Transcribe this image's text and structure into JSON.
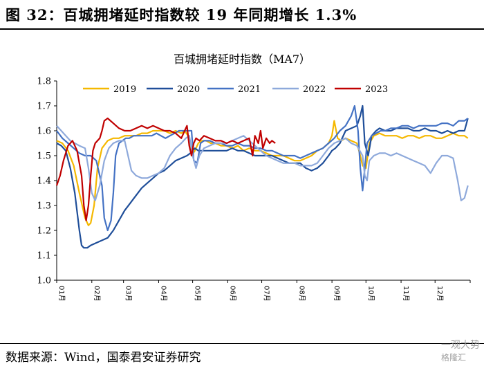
{
  "figure": {
    "title": "图 32：百城拥堵延时指数较 19 年同期增长 1.3%",
    "source": "数据来源：Wind，国泰君安证券研究",
    "watermark_line1": "一观大势",
    "watermark_line2": "格隆汇"
  },
  "chart_data": {
    "type": "line",
    "title": "百城拥堵延时指数（MA7）",
    "xlabel": "",
    "ylabel": "",
    "ylim": [
      1.0,
      1.8
    ],
    "yticks": [
      "1.8",
      "1.7",
      "1.6",
      "1.5",
      "1.4",
      "1.3",
      "1.2",
      "1.1",
      "1.0"
    ],
    "xlim": [
      0,
      365
    ],
    "xticks": [
      {
        "day": 0,
        "label": "01月"
      },
      {
        "day": 31,
        "label": "02月"
      },
      {
        "day": 59,
        "label": "03月"
      },
      {
        "day": 90,
        "label": "04月"
      },
      {
        "day": 120,
        "label": "05月"
      },
      {
        "day": 151,
        "label": "06月"
      },
      {
        "day": 181,
        "label": "07月"
      },
      {
        "day": 212,
        "label": "08月"
      },
      {
        "day": 243,
        "label": "09月"
      },
      {
        "day": 273,
        "label": "10月"
      },
      {
        "day": 304,
        "label": "11月"
      },
      {
        "day": 334,
        "label": "12月"
      },
      {
        "day": 365,
        "label": ""
      }
    ],
    "legend_position": "top",
    "grid": false,
    "series": [
      {
        "name": "2019",
        "color": "#F5B800",
        "x": [
          0,
          5,
          10,
          15,
          20,
          25,
          28,
          30,
          33,
          36,
          40,
          45,
          50,
          55,
          60,
          65,
          70,
          75,
          80,
          85,
          90,
          95,
          100,
          105,
          110,
          113,
          116,
          119,
          122,
          125,
          128,
          132,
          136,
          140,
          145,
          150,
          155,
          160,
          165,
          170,
          175,
          180,
          185,
          190,
          195,
          200,
          205,
          210,
          215,
          220,
          225,
          230,
          235,
          240,
          243,
          245,
          248,
          251,
          255,
          260,
          265,
          268,
          270,
          273,
          276,
          280,
          285,
          290,
          295,
          300,
          305,
          310,
          315,
          320,
          325,
          330,
          335,
          340,
          345,
          350,
          355,
          360,
          363
        ],
        "y": [
          1.56,
          1.55,
          1.52,
          1.46,
          1.35,
          1.25,
          1.22,
          1.23,
          1.3,
          1.45,
          1.53,
          1.56,
          1.57,
          1.57,
          1.58,
          1.58,
          1.58,
          1.59,
          1.59,
          1.6,
          1.6,
          1.6,
          1.59,
          1.6,
          1.59,
          1.6,
          1.58,
          1.5,
          1.52,
          1.55,
          1.56,
          1.56,
          1.55,
          1.55,
          1.54,
          1.54,
          1.53,
          1.54,
          1.52,
          1.53,
          1.52,
          1.52,
          1.51,
          1.5,
          1.5,
          1.5,
          1.49,
          1.48,
          1.48,
          1.49,
          1.5,
          1.52,
          1.53,
          1.55,
          1.58,
          1.64,
          1.57,
          1.56,
          1.57,
          1.56,
          1.55,
          1.5,
          1.46,
          1.45,
          1.55,
          1.58,
          1.59,
          1.58,
          1.58,
          1.58,
          1.57,
          1.58,
          1.58,
          1.57,
          1.58,
          1.58,
          1.57,
          1.57,
          1.58,
          1.59,
          1.58,
          1.58,
          1.57
        ]
      },
      {
        "name": "2020",
        "color": "#1F4E99",
        "x": [
          0,
          4,
          8,
          12,
          16,
          20,
          22,
          24,
          27,
          30,
          35,
          40,
          45,
          50,
          55,
          60,
          65,
          70,
          75,
          80,
          85,
          90,
          95,
          100,
          105,
          110,
          115,
          118,
          120,
          122,
          125,
          130,
          135,
          140,
          145,
          150,
          155,
          160,
          165,
          170,
          175,
          180,
          185,
          190,
          195,
          200,
          205,
          210,
          215,
          220,
          225,
          230,
          235,
          240,
          243,
          246,
          250,
          255,
          260,
          265,
          268,
          270,
          272,
          275,
          278,
          282,
          285,
          290,
          295,
          300,
          305,
          310,
          315,
          320,
          325,
          330,
          335,
          340,
          345,
          350,
          355,
          360,
          363
        ],
        "y": [
          1.55,
          1.54,
          1.52,
          1.45,
          1.35,
          1.2,
          1.14,
          1.13,
          1.13,
          1.14,
          1.15,
          1.16,
          1.17,
          1.2,
          1.24,
          1.28,
          1.31,
          1.34,
          1.37,
          1.39,
          1.41,
          1.43,
          1.44,
          1.46,
          1.48,
          1.49,
          1.5,
          1.51,
          1.52,
          1.53,
          1.52,
          1.52,
          1.52,
          1.52,
          1.52,
          1.52,
          1.53,
          1.52,
          1.52,
          1.51,
          1.5,
          1.5,
          1.5,
          1.5,
          1.49,
          1.48,
          1.47,
          1.47,
          1.47,
          1.45,
          1.44,
          1.45,
          1.47,
          1.5,
          1.52,
          1.53,
          1.55,
          1.6,
          1.61,
          1.62,
          1.66,
          1.7,
          1.55,
          1.5,
          1.58,
          1.6,
          1.61,
          1.6,
          1.6,
          1.61,
          1.61,
          1.61,
          1.6,
          1.6,
          1.61,
          1.6,
          1.6,
          1.59,
          1.6,
          1.59,
          1.6,
          1.6,
          1.65
        ]
      },
      {
        "name": "2021",
        "color": "#4472C4",
        "x": [
          0,
          5,
          10,
          15,
          20,
          25,
          30,
          35,
          40,
          42,
          45,
          48,
          50,
          52,
          55,
          58,
          61,
          64,
          68,
          72,
          76,
          80,
          84,
          88,
          92,
          96,
          100,
          104,
          108,
          112,
          116,
          119,
          121,
          124,
          127,
          130,
          135,
          140,
          145,
          150,
          155,
          160,
          165,
          170,
          175,
          180,
          185,
          190,
          195,
          200,
          205,
          210,
          215,
          220,
          225,
          230,
          235,
          240,
          245,
          250,
          255,
          260,
          263,
          266,
          268,
          270,
          272,
          274,
          278,
          282,
          286,
          290,
          295,
          300,
          305,
          310,
          315,
          320,
          325,
          330,
          335,
          340,
          345,
          350,
          355,
          360,
          363
        ],
        "y": [
          1.6,
          1.57,
          1.55,
          1.53,
          1.51,
          1.5,
          1.5,
          1.48,
          1.38,
          1.25,
          1.2,
          1.24,
          1.35,
          1.5,
          1.55,
          1.56,
          1.57,
          1.57,
          1.58,
          1.58,
          1.58,
          1.58,
          1.58,
          1.59,
          1.58,
          1.57,
          1.58,
          1.59,
          1.6,
          1.6,
          1.6,
          1.6,
          1.48,
          1.47,
          1.55,
          1.56,
          1.56,
          1.55,
          1.55,
          1.54,
          1.54,
          1.55,
          1.54,
          1.54,
          1.53,
          1.53,
          1.52,
          1.52,
          1.51,
          1.5,
          1.5,
          1.5,
          1.49,
          1.5,
          1.51,
          1.52,
          1.53,
          1.55,
          1.57,
          1.6,
          1.62,
          1.66,
          1.7,
          1.6,
          1.45,
          1.36,
          1.45,
          1.55,
          1.58,
          1.59,
          1.6,
          1.6,
          1.61,
          1.61,
          1.62,
          1.62,
          1.61,
          1.62,
          1.62,
          1.62,
          1.62,
          1.63,
          1.63,
          1.62,
          1.64,
          1.64,
          1.65
        ]
      },
      {
        "name": "2022",
        "color": "#8EA9DB",
        "x": [
          0,
          4,
          8,
          12,
          16,
          20,
          25,
          28,
          31,
          34,
          38,
          42,
          46,
          50,
          55,
          60,
          63,
          66,
          70,
          75,
          80,
          85,
          90,
          95,
          100,
          105,
          110,
          114,
          117,
          120,
          123,
          126,
          130,
          135,
          140,
          145,
          150,
          155,
          160,
          165,
          170,
          175,
          180,
          185,
          190,
          195,
          200,
          205,
          210,
          215,
          220,
          225,
          230,
          235,
          240,
          245,
          250,
          255,
          260,
          265,
          270,
          272,
          274,
          276,
          280,
          285,
          290,
          295,
          300,
          305,
          310,
          315,
          320,
          325,
          330,
          335,
          340,
          345,
          350,
          354,
          357,
          360,
          363
        ],
        "y": [
          1.62,
          1.6,
          1.58,
          1.56,
          1.55,
          1.54,
          1.53,
          1.45,
          1.35,
          1.32,
          1.38,
          1.48,
          1.53,
          1.55,
          1.56,
          1.56,
          1.5,
          1.44,
          1.42,
          1.41,
          1.41,
          1.42,
          1.43,
          1.45,
          1.5,
          1.53,
          1.55,
          1.57,
          1.58,
          1.5,
          1.45,
          1.5,
          1.53,
          1.54,
          1.55,
          1.55,
          1.55,
          1.56,
          1.57,
          1.58,
          1.56,
          1.54,
          1.52,
          1.5,
          1.49,
          1.48,
          1.47,
          1.47,
          1.47,
          1.46,
          1.46,
          1.46,
          1.47,
          1.5,
          1.53,
          1.55,
          1.56,
          1.57,
          1.55,
          1.54,
          1.5,
          1.42,
          1.4,
          1.48,
          1.5,
          1.51,
          1.51,
          1.5,
          1.51,
          1.5,
          1.49,
          1.48,
          1.47,
          1.46,
          1.43,
          1.47,
          1.5,
          1.5,
          1.49,
          1.4,
          1.32,
          1.33,
          1.38
        ]
      },
      {
        "name": "2023",
        "color": "#C00000",
        "x": [
          0,
          3,
          6,
          10,
          14,
          18,
          22,
          24,
          26,
          28,
          30,
          32,
          34,
          36,
          38,
          40,
          42,
          45,
          50,
          55,
          60,
          65,
          70,
          75,
          80,
          85,
          90,
          95,
          100,
          105,
          110,
          113,
          115,
          117,
          119,
          121,
          123,
          126,
          130,
          135,
          140,
          145,
          150,
          155,
          160,
          165,
          170,
          173,
          175,
          178,
          180,
          182,
          185,
          188,
          190,
          193
        ],
        "y": [
          1.38,
          1.42,
          1.48,
          1.54,
          1.56,
          1.52,
          1.42,
          1.3,
          1.24,
          1.3,
          1.42,
          1.52,
          1.55,
          1.56,
          1.57,
          1.6,
          1.64,
          1.65,
          1.63,
          1.61,
          1.6,
          1.6,
          1.61,
          1.62,
          1.61,
          1.62,
          1.61,
          1.6,
          1.6,
          1.59,
          1.57,
          1.6,
          1.62,
          1.54,
          1.5,
          1.55,
          1.57,
          1.56,
          1.58,
          1.57,
          1.56,
          1.56,
          1.55,
          1.56,
          1.55,
          1.56,
          1.57,
          1.5,
          1.58,
          1.55,
          1.6,
          1.53,
          1.57,
          1.55,
          1.56,
          1.55
        ]
      }
    ]
  }
}
